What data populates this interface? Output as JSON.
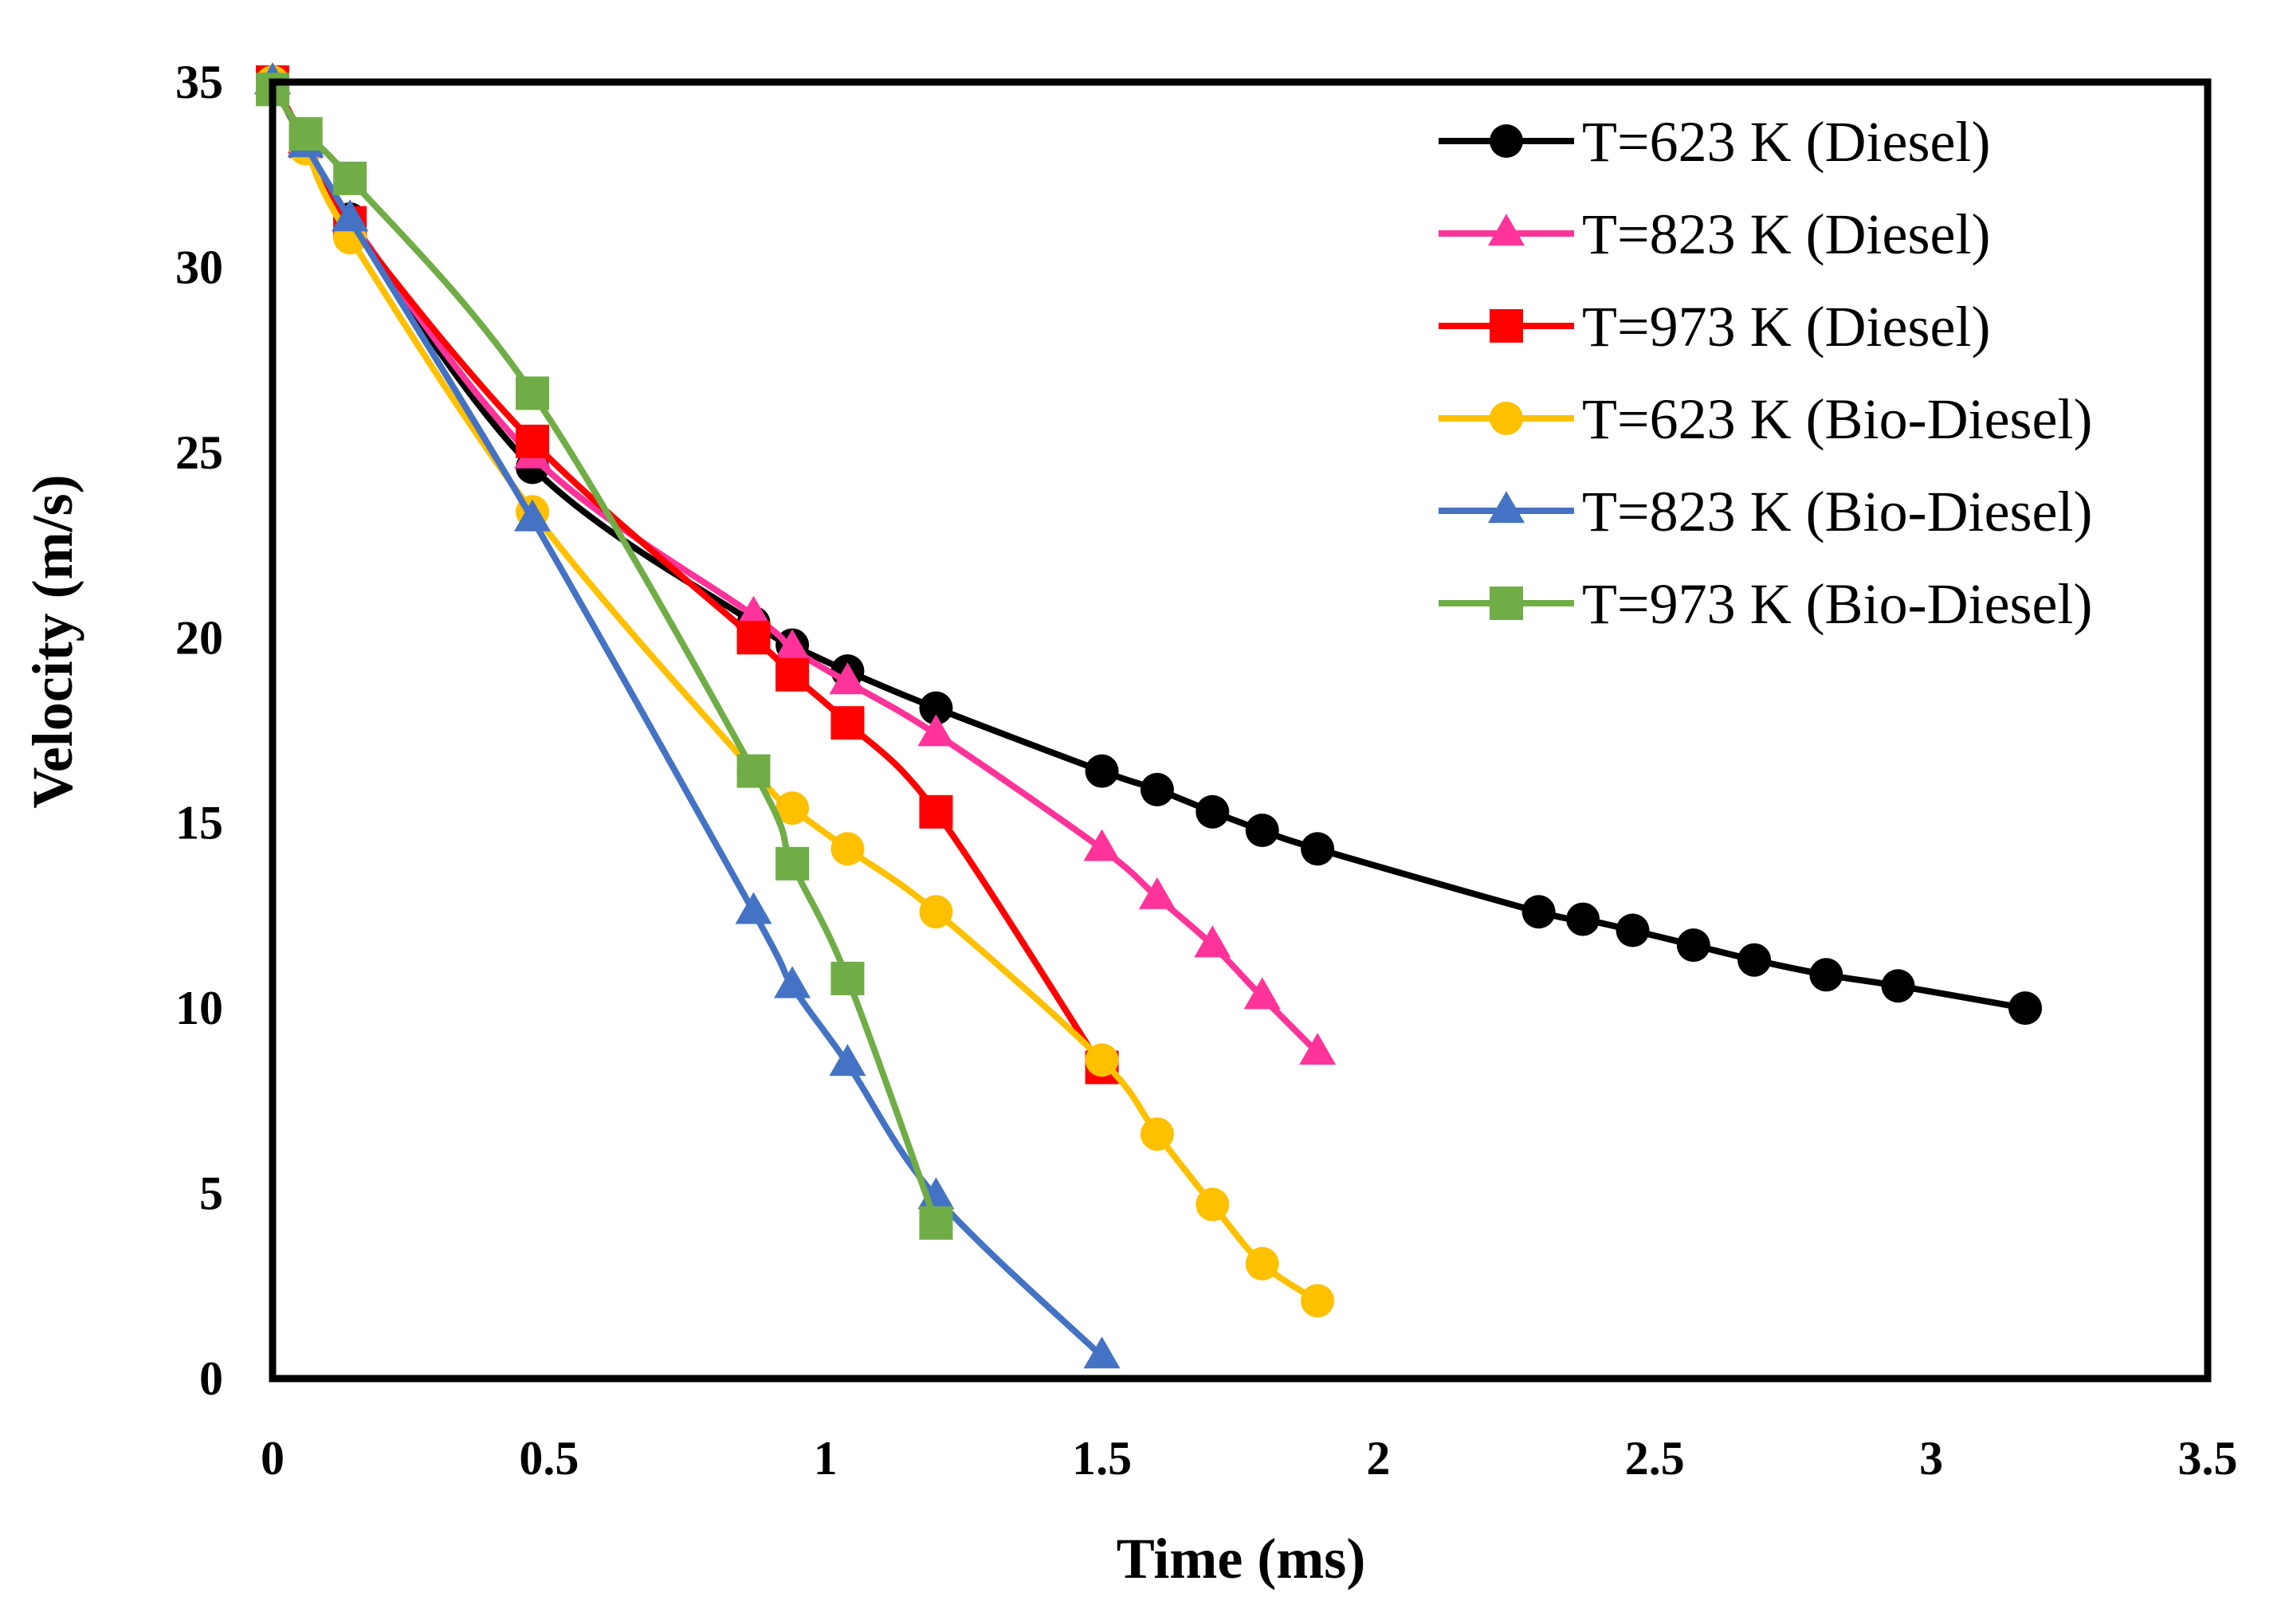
{
  "chart_data": {
    "type": "line",
    "title": "",
    "xlabel": "Time (ms)",
    "ylabel": "Velocity (m/s)",
    "xlim": [
      0,
      3.5
    ],
    "ylim": [
      0,
      35
    ],
    "xticks": [
      0,
      0.5,
      1,
      1.5,
      2,
      2.5,
      3,
      3.5
    ],
    "xtick_labels": [
      "0",
      "0.5",
      "1",
      "1.5",
      "2",
      "2.5",
      "3",
      "3.5"
    ],
    "yticks": [
      0,
      5,
      10,
      15,
      20,
      25,
      30,
      35
    ],
    "ytick_labels": [
      "0",
      "5",
      "10",
      "15",
      "20",
      "25",
      "30",
      "35"
    ],
    "grid": false,
    "legend_position": "top-right",
    "series": [
      {
        "name": "T=623 K (Diesel)",
        "color": "#000000",
        "marker": "circle",
        "x": [
          0,
          0.06,
          0.14,
          0.47,
          0.87,
          0.94,
          1.04,
          1.2,
          1.5,
          1.6,
          1.7,
          1.79,
          1.89,
          2.29,
          2.37,
          2.46,
          2.57,
          2.68,
          2.81,
          2.94,
          3.17
        ],
        "y": [
          35,
          33.4,
          31.3,
          24.6,
          20.4,
          19.8,
          19.1,
          18.1,
          16.4,
          15.9,
          15.3,
          14.8,
          14.3,
          12.6,
          12.4,
          12.1,
          11.7,
          11.3,
          10.9,
          10.6,
          10.0
        ]
      },
      {
        "name": "T=823 K (Diesel)",
        "color": "#FF3399",
        "marker": "triangle",
        "x": [
          0,
          0.06,
          0.14,
          0.47,
          0.87,
          0.94,
          1.04,
          1.2,
          1.5,
          1.6,
          1.7,
          1.79,
          1.89
        ],
        "y": [
          35,
          33.4,
          31.3,
          24.9,
          20.6,
          19.7,
          18.8,
          17.4,
          14.3,
          13.0,
          11.7,
          10.3,
          8.8
        ]
      },
      {
        "name": "T=973 K (Diesel)",
        "color": "#FF0000",
        "marker": "square",
        "x": [
          0,
          0.06,
          0.14,
          0.47,
          0.87,
          0.94,
          1.04,
          1.2,
          1.5
        ],
        "y": [
          35,
          33.4,
          31.2,
          25.3,
          20.0,
          19.0,
          17.7,
          15.3,
          8.4
        ]
      },
      {
        "name": "T=623 K (Bio-Diesel)",
        "color": "#FFC000",
        "marker": "circle",
        "x": [
          0,
          0.06,
          0.14,
          0.47,
          0.87,
          0.94,
          1.04,
          1.2,
          1.5,
          1.6,
          1.7,
          1.79,
          1.89
        ],
        "y": [
          35,
          33.2,
          30.8,
          23.4,
          16.4,
          15.4,
          14.3,
          12.6,
          8.6,
          6.6,
          4.7,
          3.1,
          2.1
        ]
      },
      {
        "name": "T=823 K (Bio-Diesel)",
        "color": "#4472C4",
        "marker": "triangle",
        "x": [
          0,
          0.06,
          0.14,
          0.47,
          0.87,
          0.94,
          1.04,
          1.2,
          1.5
        ],
        "y": [
          35,
          33.3,
          31.3,
          23.2,
          12.6,
          10.6,
          8.5,
          4.9,
          0.6
        ]
      },
      {
        "name": "T=973 K (Bio-Diesel)",
        "color": "#70AD47",
        "marker": "square",
        "x": [
          0,
          0.06,
          0.14,
          0.47,
          0.87,
          0.94,
          1.04,
          1.2
        ],
        "y": [
          34.8,
          33.6,
          32.4,
          26.6,
          16.4,
          13.9,
          10.8,
          4.2
        ]
      }
    ]
  }
}
